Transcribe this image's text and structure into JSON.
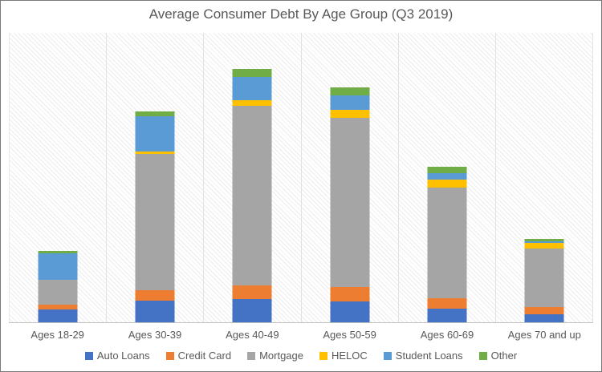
{
  "window": {
    "background_color": "#ffffff",
    "border_color": "#7a7a7a"
  },
  "header": {
    "title": "Average Consumer Debt By Age Group (Q3 2019)",
    "title_color": "#595959"
  },
  "chart_data": {
    "type": "bar",
    "stacked": true,
    "title": "Average Consumer Debt By Age Group (Q3 2019)",
    "categories": [
      "Ages 18-29",
      "Ages 30-39",
      "Ages 40-49",
      "Ages 50-59",
      "Ages 60-69",
      "Ages 70 and up"
    ],
    "series": [
      {
        "name": "Auto Loans",
        "color": "#4472C4",
        "values": [
          16,
          27,
          29,
          26,
          17,
          10
        ]
      },
      {
        "name": "Credit Card",
        "color": "#ED7D31",
        "values": [
          6,
          13,
          17,
          18,
          13,
          9
        ]
      },
      {
        "name": "Mortgage",
        "color": "#A5A5A5",
        "values": [
          31,
          170,
          224,
          211,
          138,
          73
        ]
      },
      {
        "name": "HELOC",
        "color": "#FFC000",
        "values": [
          0,
          3,
          7,
          10,
          10,
          7
        ]
      },
      {
        "name": "Student Loans",
        "color": "#5B9BD5",
        "values": [
          33,
          44,
          29,
          18,
          8,
          2
        ]
      },
      {
        "name": "Other",
        "color": "#70AD47",
        "values": [
          3,
          6,
          10,
          10,
          8,
          3
        ]
      }
    ],
    "totals_relative": [
      89,
      263,
      316,
      293,
      194,
      104
    ],
    "xlabel": "",
    "ylabel": "",
    "ylim": [
      0,
      362
    ],
    "value_units": "relative units (no y-axis tick labels shown in chart)",
    "y_axis_visible": false,
    "grid": "vertical category separators only, light gray",
    "plot_background": "white with light-gray diagonal hatch",
    "legend_position": "bottom",
    "legend_labels": [
      "Auto Loans",
      "Credit Card",
      "Mortgage",
      "HELOC",
      "Student Loans",
      "Other"
    ]
  },
  "style": {
    "axis_line_color": "#bfbfbf",
    "gridline_color": "#e2e2e2",
    "label_color": "#595959",
    "hatch_line_color": "#ececec"
  }
}
